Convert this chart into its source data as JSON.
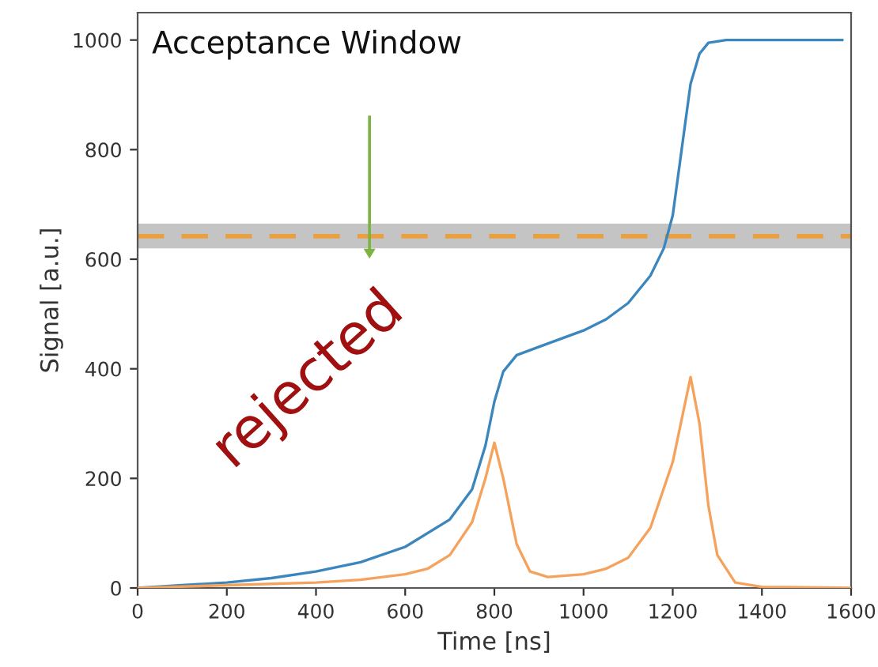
{
  "chart_data": {
    "type": "line",
    "xlabel": "Time [ns]",
    "ylabel": "Signal [a.u.]",
    "xlim": [
      0,
      1600
    ],
    "ylim": [
      0,
      1050
    ],
    "xticks": [
      0,
      200,
      400,
      600,
      800,
      1000,
      1200,
      1400,
      1600
    ],
    "yticks": [
      0,
      200,
      400,
      600,
      800,
      1000
    ],
    "grid": false,
    "series": [
      {
        "color": "#3b86bd",
        "x": [
          0,
          100,
          200,
          300,
          400,
          500,
          600,
          700,
          750,
          780,
          800,
          820,
          850,
          900,
          1000,
          1050,
          1100,
          1150,
          1180,
          1200,
          1220,
          1240,
          1260,
          1280,
          1320,
          1400,
          1580
        ],
        "values": [
          0,
          5,
          10,
          18,
          30,
          47,
          75,
          125,
          180,
          260,
          340,
          395,
          425,
          440,
          470,
          490,
          520,
          570,
          620,
          680,
          800,
          920,
          975,
          995,
          1000,
          1000,
          1000
        ]
      },
      {
        "color": "#f5a25d",
        "x": [
          0,
          200,
          400,
          500,
          600,
          650,
          700,
          750,
          780,
          800,
          820,
          850,
          880,
          920,
          1000,
          1050,
          1100,
          1150,
          1200,
          1240,
          1260,
          1280,
          1300,
          1340,
          1400,
          1600
        ],
        "values": [
          0,
          5,
          10,
          15,
          25,
          35,
          60,
          120,
          200,
          265,
          200,
          80,
          30,
          20,
          25,
          35,
          55,
          110,
          230,
          385,
          300,
          150,
          60,
          10,
          2,
          0
        ]
      }
    ],
    "bands": [
      {
        "axis": "y",
        "from": 620,
        "to": 665,
        "color": "#c4c4c4"
      }
    ],
    "ref_lines": [
      {
        "axis": "y",
        "value": 642,
        "color": "#e8a040",
        "line_style": "dashed"
      }
    ],
    "annotations": [
      "Acceptance Window",
      "rejected"
    ]
  }
}
